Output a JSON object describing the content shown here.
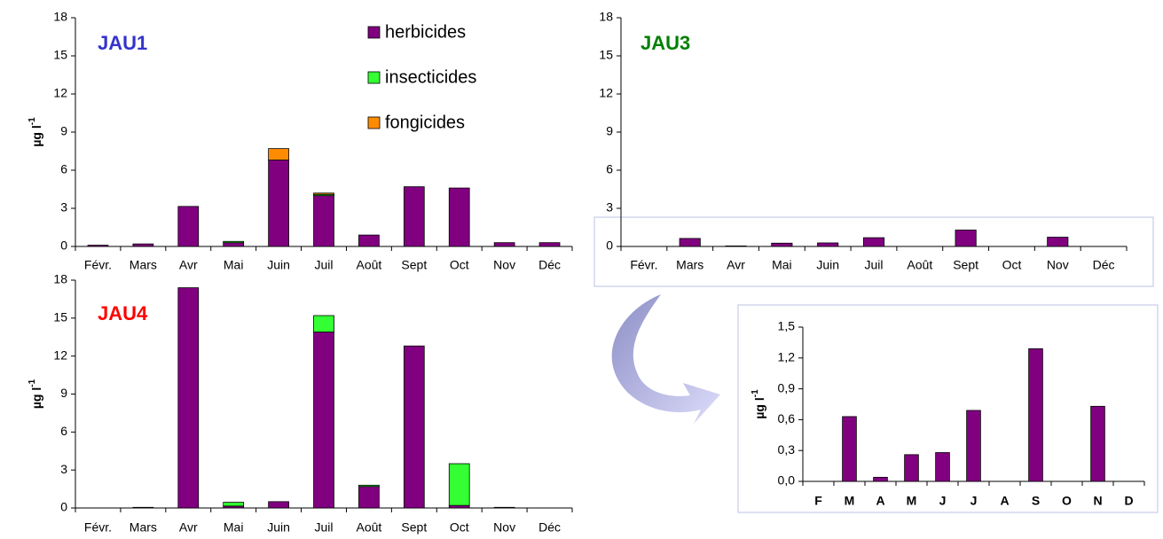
{
  "chart_data": [
    {
      "type": "bar",
      "stacked": true,
      "title": "JAU1",
      "title_color": "#3333cc",
      "ylabel": "µg l",
      "ylabel_sup": "-1",
      "categories": [
        "Févr.",
        "Mars",
        "Avr",
        "Mai",
        "Juin",
        "Juil",
        "Août",
        "Sept",
        "Oct",
        "Nov",
        "Déc"
      ],
      "series": [
        {
          "name": "herbicides",
          "color": "#800080",
          "values": [
            0.1,
            0.2,
            3.15,
            0.3,
            6.8,
            4.0,
            0.9,
            4.7,
            4.6,
            0.3,
            0.3
          ]
        },
        {
          "name": "insecticides",
          "color": "#33ff33",
          "values": [
            0,
            0,
            0,
            0.1,
            0,
            0.1,
            0,
            0,
            0,
            0,
            0
          ]
        },
        {
          "name": "fongicides",
          "color": "#ff8c00",
          "values": [
            0,
            0,
            0,
            0,
            0.9,
            0.1,
            0,
            0,
            0,
            0,
            0
          ]
        }
      ],
      "ylim": [
        0,
        18
      ],
      "yticks": [
        0,
        3,
        6,
        9,
        12,
        15,
        18
      ],
      "legend": "top-right"
    },
    {
      "type": "bar",
      "title": "JAU3",
      "title_color": "#008000",
      "categories": [
        "Févr.",
        "Mars",
        "Avr",
        "Mai",
        "Juin",
        "Juil",
        "Août",
        "Sept",
        "Oct",
        "Nov",
        "Déc"
      ],
      "values": [
        0,
        0.63,
        0.04,
        0.26,
        0.28,
        0.69,
        0,
        1.29,
        0,
        0.73,
        0
      ],
      "color": "#800080",
      "ylim": [
        0,
        18
      ],
      "yticks": [
        0,
        3,
        6,
        9,
        12,
        15,
        18
      ]
    },
    {
      "type": "bar",
      "stacked": true,
      "title": "JAU4",
      "title_color": "#ff0000",
      "ylabel": "µg l",
      "ylabel_sup": "-1",
      "categories": [
        "Févr.",
        "Mars",
        "Avr",
        "Mai",
        "Juin",
        "Juil",
        "Août",
        "Sept",
        "Oct",
        "Nov",
        "Déc"
      ],
      "series": [
        {
          "color": "#800080",
          "values": [
            0,
            0.05,
            17.4,
            0.15,
            0.5,
            13.9,
            1.7,
            12.8,
            0.2,
            0.05,
            0
          ]
        },
        {
          "color": "#33ff33",
          "values": [
            0,
            0,
            0,
            0.3,
            0,
            1.3,
            0.1,
            0,
            3.3,
            0,
            0
          ]
        }
      ],
      "ylim": [
        0,
        18
      ],
      "yticks": [
        0,
        3,
        6,
        9,
        12,
        15,
        18
      ]
    },
    {
      "type": "bar",
      "ylabel": "µg l",
      "ylabel_sup": "-1",
      "categories": [
        "F",
        "M",
        "A",
        "M",
        "J",
        "J",
        "A",
        "S",
        "O",
        "N",
        "D"
      ],
      "values": [
        0,
        0.63,
        0.04,
        0.26,
        0.28,
        0.69,
        0,
        1.29,
        0,
        0.73,
        0
      ],
      "color": "#800080",
      "ylim": [
        0,
        1.5
      ],
      "yticks": [
        {
          "value": 0,
          "label": "0,0"
        },
        {
          "value": 0.3,
          "label": "0,3"
        },
        {
          "value": 0.6,
          "label": "0,6"
        },
        {
          "value": 0.9,
          "label": "0,9"
        },
        {
          "value": 1.2,
          "label": "1,2"
        },
        {
          "value": 1.5,
          "label": "1,5"
        }
      ]
    }
  ]
}
